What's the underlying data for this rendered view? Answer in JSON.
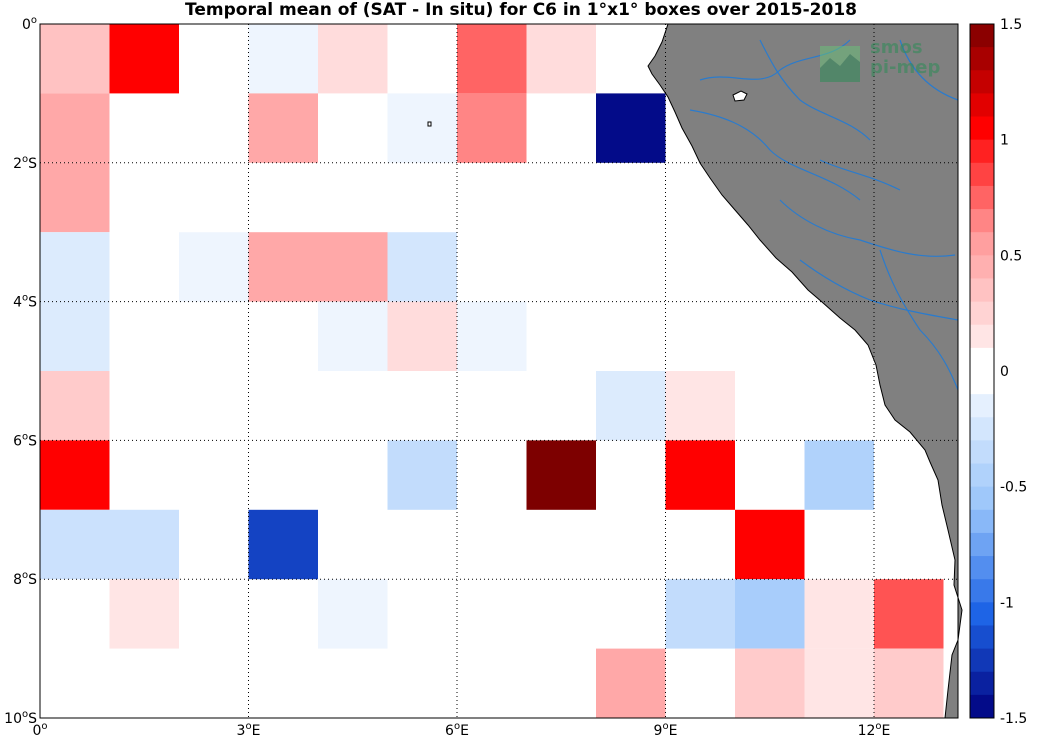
{
  "title": "Temporal mean of (SAT - In situ) for C6 in 1°x1° boxes over 2015-2018",
  "logo": {
    "line1": "smos",
    "line2": "pi-mep"
  },
  "map": {
    "x_ticks": [
      {
        "value": 0,
        "label": "0o"
      },
      {
        "value": 3,
        "label": "3oE"
      },
      {
        "value": 6,
        "label": "6oE"
      },
      {
        "value": 9,
        "label": "9oE"
      },
      {
        "value": 12,
        "label": "12oE"
      }
    ],
    "y_ticks": [
      {
        "value": 0,
        "label": "0o"
      },
      {
        "value": -2,
        "label": "2oS"
      },
      {
        "value": -4,
        "label": "4oS"
      },
      {
        "value": -6,
        "label": "6oS"
      },
      {
        "value": -8,
        "label": "8oS"
      },
      {
        "value": -10,
        "label": "10oS"
      }
    ],
    "lon_range": [
      0,
      13.2
    ],
    "lat_range": [
      -10,
      0
    ],
    "grid": true,
    "land_color": "#808080",
    "river_color": "#2b7bcc"
  },
  "colorbar": {
    "min": -1.5,
    "max": 1.5,
    "tick_values": [
      1.5,
      1,
      0.5,
      0,
      -0.5,
      -1,
      -1.5
    ],
    "tick_labels": [
      "1.5",
      "1",
      "0.5",
      "0",
      "-0.5",
      "-1",
      "-1.5"
    ]
  },
  "chart_data": {
    "type": "heatmap",
    "title": "Temporal mean of (SAT - In situ) for C6 in 1°x1° boxes over 2015-2018",
    "xlabel": "",
    "ylabel": "",
    "value_range": [
      -1.5,
      1.5
    ],
    "cells": [
      {
        "lon": 0,
        "lat": 0,
        "value": 0.35
      },
      {
        "lon": 1,
        "lat": 0,
        "value": 1.05
      },
      {
        "lon": 3,
        "lat": 0,
        "value": -0.1
      },
      {
        "lon": 4,
        "lat": 0,
        "value": 0.2
      },
      {
        "lon": 6,
        "lat": 0,
        "value": 0.75
      },
      {
        "lon": 7,
        "lat": 0,
        "value": 0.2
      },
      {
        "lon": 0,
        "lat": -1,
        "value": 0.5
      },
      {
        "lon": 3,
        "lat": -1,
        "value": 0.5
      },
      {
        "lon": 5,
        "lat": -1,
        "value": -0.1
      },
      {
        "lon": 6,
        "lat": -1,
        "value": 0.65
      },
      {
        "lon": 8,
        "lat": -1,
        "value": -1.45
      },
      {
        "lon": 0,
        "lat": -2,
        "value": 0.5
      },
      {
        "lon": 0,
        "lat": -3,
        "value": -0.2
      },
      {
        "lon": 2,
        "lat": -3,
        "value": -0.1
      },
      {
        "lon": 3,
        "lat": -3,
        "value": 0.5
      },
      {
        "lon": 4,
        "lat": -3,
        "value": 0.5
      },
      {
        "lon": 5,
        "lat": -3,
        "value": -0.25
      },
      {
        "lon": 0,
        "lat": -4,
        "value": -0.2
      },
      {
        "lon": 4,
        "lat": -4,
        "value": -0.1
      },
      {
        "lon": 5,
        "lat": -4,
        "value": 0.2
      },
      {
        "lon": 6,
        "lat": -4,
        "value": -0.1
      },
      {
        "lon": 0,
        "lat": -5,
        "value": 0.3
      },
      {
        "lon": 8,
        "lat": -5,
        "value": -0.2
      },
      {
        "lon": 9,
        "lat": -5,
        "value": 0.15
      },
      {
        "lon": 0,
        "lat": -6,
        "value": 1.05
      },
      {
        "lon": 5,
        "lat": -6,
        "value": -0.35
      },
      {
        "lon": 7,
        "lat": -6,
        "value": 1.5
      },
      {
        "lon": 9,
        "lat": -6,
        "value": 1.05
      },
      {
        "lon": 11,
        "lat": -6,
        "value": -0.45
      },
      {
        "lon": 0,
        "lat": -7,
        "value": -0.3
      },
      {
        "lon": 1,
        "lat": -7,
        "value": -0.3
      },
      {
        "lon": 3,
        "lat": -7,
        "value": -1.2
      },
      {
        "lon": 10,
        "lat": -7,
        "value": 1.05
      },
      {
        "lon": 1,
        "lat": -8,
        "value": 0.15
      },
      {
        "lon": 4,
        "lat": -8,
        "value": -0.1
      },
      {
        "lon": 9,
        "lat": -8,
        "value": -0.35
      },
      {
        "lon": 10,
        "lat": -8,
        "value": -0.5
      },
      {
        "lon": 11,
        "lat": -8,
        "value": 0.15
      },
      {
        "lon": 12,
        "lat": -8,
        "value": 0.8
      },
      {
        "lon": 8,
        "lat": -9,
        "value": 0.5
      },
      {
        "lon": 10,
        "lat": -9,
        "value": 0.3
      },
      {
        "lon": 11,
        "lat": -9,
        "value": 0.15
      },
      {
        "lon": 12,
        "lat": -9,
        "value": 0.3
      }
    ]
  }
}
